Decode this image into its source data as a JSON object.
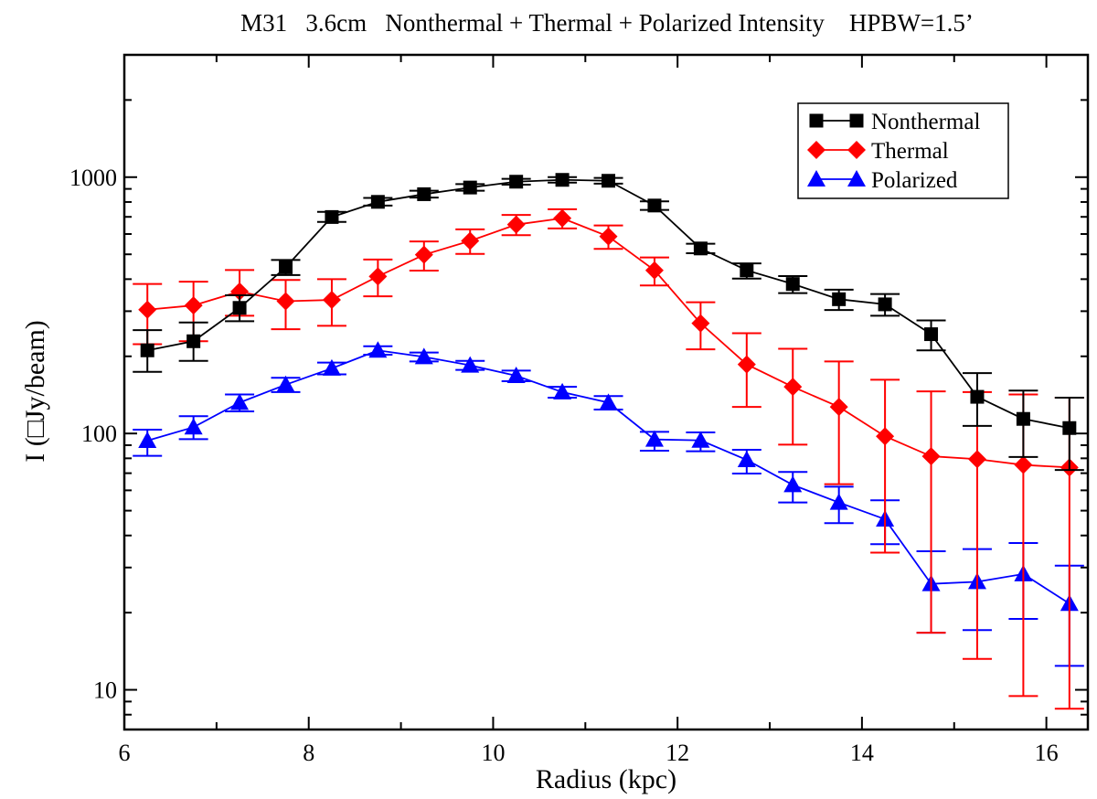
{
  "chart_data": {
    "type": "line",
    "title": "M31   3.6cm   Nonthermal + Thermal + Polarized Intensity    HPBW=1.5’",
    "xlabel": "Radius (kpc)",
    "ylabel": "I (□Jy/beam)",
    "xscale": "linear",
    "yscale": "log",
    "xlim": [
      6,
      16.45
    ],
    "ylim": [
      7,
      3000
    ],
    "grid": false,
    "legend_position": "top-right",
    "x_ticks": [
      6,
      8,
      10,
      12,
      14,
      16
    ],
    "x_tick_labels": [
      "6",
      "8",
      "10",
      "12",
      "14",
      "16"
    ],
    "x_minor_ticks": [
      7,
      9,
      11,
      13,
      15
    ],
    "y_ticks": [
      10,
      100,
      1000
    ],
    "y_tick_labels": [
      "10",
      "100",
      "1000"
    ],
    "x": [
      6.25,
      6.75,
      7.25,
      7.75,
      8.25,
      8.75,
      9.25,
      9.75,
      10.25,
      10.75,
      11.25,
      11.75,
      12.25,
      12.75,
      13.25,
      13.75,
      14.25,
      14.75,
      15.25,
      15.75,
      16.25
    ],
    "series": [
      {
        "name": "Nonthermal",
        "color": "#000000",
        "marker": "square",
        "values": [
          211,
          229,
          309,
          445,
          699,
          801,
          858,
          911,
          960,
          976,
          968,
          775,
          527,
          433,
          383,
          334,
          319,
          244,
          139,
          114,
          105
        ],
        "err_upper": [
          253,
          271,
          346,
          475,
          732,
          830,
          885,
          940,
          985,
          1000,
          993,
          805,
          550,
          461,
          411,
          364,
          350,
          276,
          172,
          147,
          138
        ],
        "err_lower": [
          174,
          192,
          274,
          415,
          669,
          775,
          832,
          885,
          935,
          952,
          943,
          745,
          505,
          402,
          353,
          303,
          288,
          211,
          107,
          81,
          72
        ]
      },
      {
        "name": "Thermal",
        "color": "#ff0000",
        "marker": "diamond",
        "values": [
          304,
          316,
          358,
          328,
          332,
          410,
          498,
          564,
          653,
          691,
          587,
          433,
          269,
          186,
          152,
          127,
          97.5,
          81.5,
          79.4,
          75.4,
          73.7
        ],
        "err_upper": [
          383,
          391,
          434,
          397,
          400,
          477,
          561,
          626,
          712,
          750,
          648,
          486,
          325,
          246,
          214,
          191,
          162,
          146,
          145,
          142,
          138
        ],
        "err_lower": [
          223,
          229,
          288,
          255,
          263,
          343,
          432,
          502,
          594,
          631,
          525,
          378,
          213,
          127,
          90.5,
          63.4,
          34.3,
          16.7,
          13.2,
          9.46,
          8.44
        ]
      },
      {
        "name": "Polarized",
        "color": "#0000ff",
        "marker": "triangle",
        "values": [
          93.8,
          105.8,
          132,
          155,
          179.5,
          211,
          199,
          184.5,
          168,
          145,
          132,
          94.8,
          94,
          78.9,
          63,
          53.8,
          46.3,
          25.9,
          26.4,
          28.3,
          21.7
        ],
        "err_upper": [
          103.5,
          116.8,
          142,
          165,
          189,
          219,
          207,
          192,
          176,
          152,
          140,
          101.5,
          101,
          86.4,
          70.8,
          62,
          54.9,
          34.7,
          35.4,
          37.4,
          30.5
        ],
        "err_lower": [
          81.8,
          95,
          122,
          145,
          170,
          203,
          191,
          177,
          160,
          138,
          124,
          85.7,
          85.2,
          69.8,
          53.8,
          44.7,
          37,
          16.7,
          17.1,
          18.9,
          12.4
        ]
      }
    ]
  }
}
